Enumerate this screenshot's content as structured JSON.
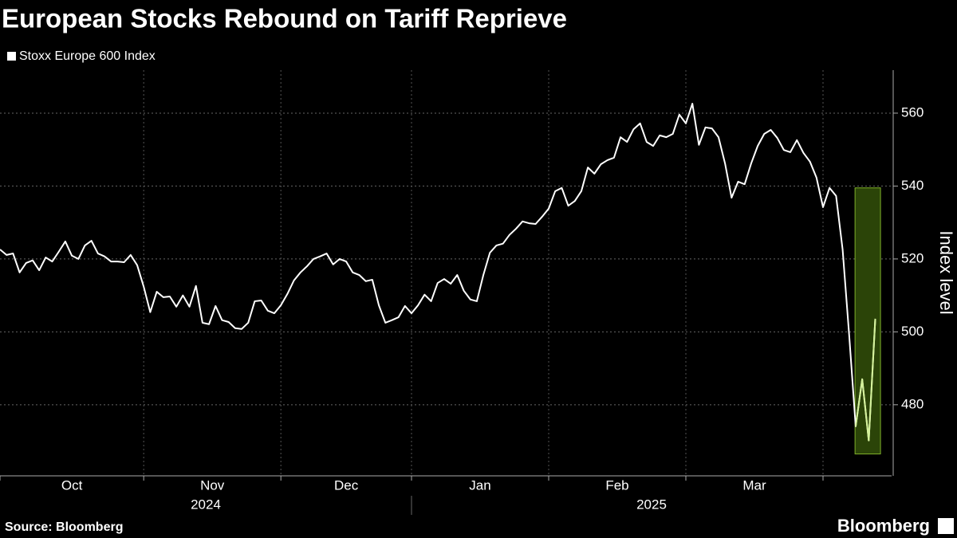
{
  "chart_data": {
    "type": "line",
    "title": "European Stocks Rebound on Tariff Reprieve",
    "y_label": "Index level",
    "source": "Source: Bloomberg",
    "brand": "Bloomberg",
    "series": [
      {
        "name": "Stoxx Europe 600 Index",
        "color": "#ffffff",
        "values": [
          522.6,
          521.1,
          521.5,
          516.3,
          518.9,
          519.6,
          516.9,
          520.4,
          519.3,
          522,
          524.8,
          520.9,
          520,
          523.7,
          525,
          521.5,
          520.7,
          519.3,
          519.3,
          519.1,
          521.1,
          518.3,
          512.4,
          505.4,
          511,
          509.5,
          509.7,
          506.9,
          510,
          506.9,
          512.6,
          502.5,
          502.1,
          507.1,
          503.2,
          502.7,
          501,
          500.8,
          502.5,
          508.4,
          508.6,
          505.8,
          505.1,
          507.3,
          510.4,
          514.1,
          516.3,
          518,
          520,
          520.7,
          521.5,
          518.5,
          520,
          519.3,
          516.3,
          515.6,
          513.9,
          514.3,
          507.3,
          502.5,
          503.2,
          504,
          507.1,
          505.1,
          507.3,
          510.2,
          508.4,
          513.4,
          514.5,
          513.2,
          515.6,
          511.3,
          508.9,
          508.4,
          515.6,
          521.7,
          523.7,
          524.2,
          526.6,
          528.3,
          530.3,
          529.8,
          529.6,
          531.6,
          533.8,
          538.6,
          539.5,
          534.6,
          535.9,
          538.6,
          545.1,
          543.4,
          546,
          547.1,
          547.8,
          553.4,
          552.1,
          555.6,
          557.2,
          552.1,
          551,
          553.9,
          553.4,
          554.3,
          559.6,
          557.2,
          562.6,
          551.3,
          556.1,
          555.8,
          553.4,
          546.2,
          536.8,
          541.2,
          540.5,
          546.2,
          551,
          554.3,
          555.4,
          553.2,
          549.9,
          549.3,
          552.6,
          549.1,
          546.7,
          542.3,
          534.2,
          539.5,
          537.3,
          522.6,
          499.2,
          474.1,
          487,
          470.2,
          503.6
        ]
      }
    ],
    "xlim": [
      0,
      136.5
    ],
    "xticks": [
      0,
      22,
      43,
      63,
      84,
      105,
      126
    ],
    "month_labels": [
      "Oct",
      "Nov",
      "Dec",
      "Jan",
      "Feb",
      "Mar"
    ],
    "years": [
      {
        "label": "2024",
        "from": 0,
        "to": 63
      },
      {
        "label": "2025",
        "from": 63,
        "to": 136.5
      }
    ],
    "ylim": [
      460.5,
      571.8
    ],
    "yticks": [
      480,
      500,
      520,
      540,
      560
    ],
    "grid": true,
    "highlight": {
      "from_index": 131,
      "xrange": [
        130.9,
        134.8
      ],
      "yrange": [
        466.5,
        539.5
      ],
      "fill": "#2b4408",
      "stroke": "#7fb02a",
      "line_color": "#d4f29a"
    }
  }
}
